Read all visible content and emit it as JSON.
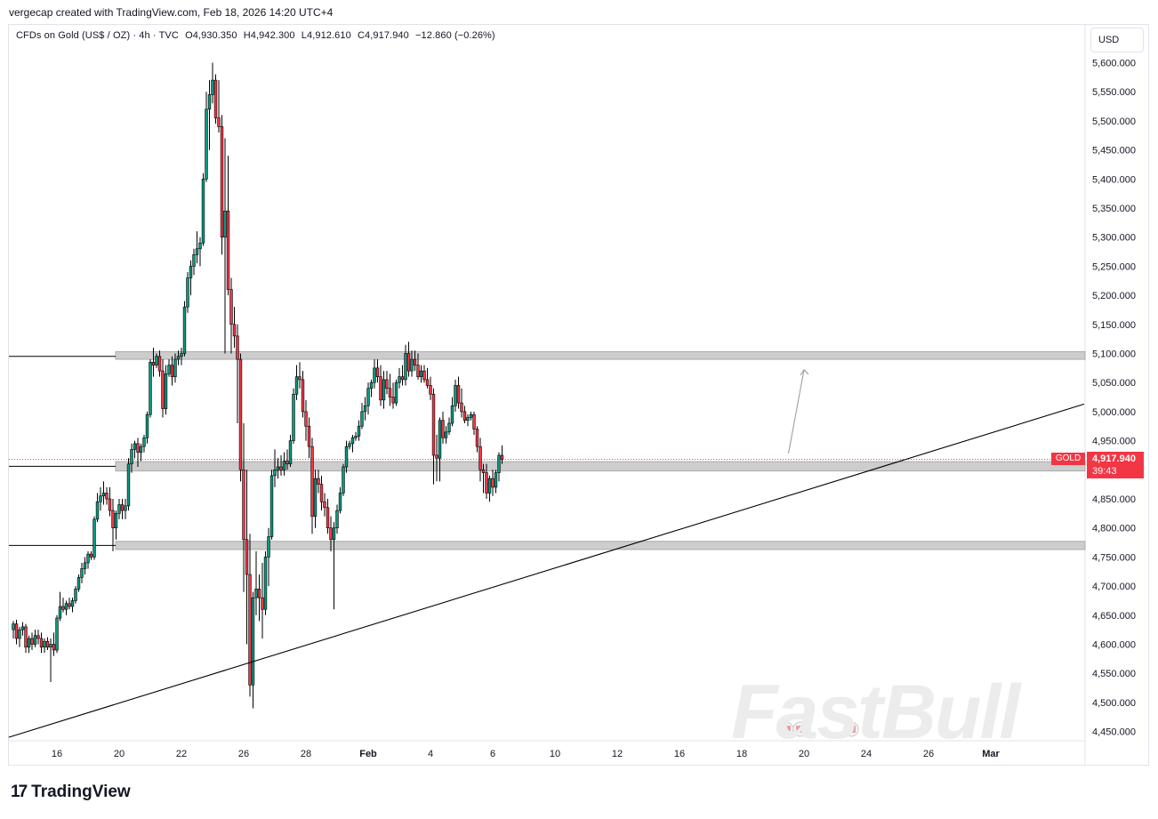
{
  "attribution": "vergecap created with TradingView.com, Feb 18, 2026 14:20 UTC+4",
  "legend": {
    "symbol": "CFDs on Gold (US$ / OZ) · 4h · TVC",
    "open": "O4,930.350",
    "high": "H4,942.300",
    "low": "L4,912.610",
    "close": "C4,917.940",
    "change": "−12.860 (−0.26%)"
  },
  "currency": "USD",
  "price_tag": {
    "symbol": "GOLD",
    "price": "4,917.940",
    "countdown": "39:43"
  },
  "footer_brand": "TradingView",
  "watermark": "FastBull",
  "colors": {
    "up": "#089981",
    "down": "#f23645",
    "zone": "#b8b8b8",
    "line": "#000000"
  },
  "chart_data": {
    "type": "candlestick",
    "ylim": [
      4435,
      5635
    ],
    "y_ticks": [
      "4,450.000",
      "4,500.000",
      "4,550.000",
      "4,600.000",
      "4,650.000",
      "4,700.000",
      "4,750.000",
      "4,800.000",
      "4,850.000",
      "4,900.000",
      "4,950.000",
      "5,000.000",
      "5,050.000",
      "5,100.000",
      "5,150.000",
      "5,200.000",
      "5,250.000",
      "5,300.000",
      "5,350.000",
      "5,400.000",
      "5,450.000",
      "5,500.000",
      "5,550.000",
      "5,600.000"
    ],
    "x_ticks": [
      {
        "label": "16",
        "slot": 14
      },
      {
        "label": "20",
        "slot": 34
      },
      {
        "label": "22",
        "slot": 54
      },
      {
        "label": "26",
        "slot": 74
      },
      {
        "label": "28",
        "slot": 94
      },
      {
        "label": "Feb",
        "slot": 114
      },
      {
        "label": "4",
        "slot": 134
      },
      {
        "label": "6",
        "slot": 154
      },
      {
        "label": "10",
        "slot": 174
      },
      {
        "label": "12",
        "slot": 194
      },
      {
        "label": "16",
        "slot": 214
      },
      {
        "label": "18",
        "slot": 234
      },
      {
        "label": "20",
        "slot": 254
      },
      {
        "label": "24",
        "slot": 274
      },
      {
        "label": "26",
        "slot": 294
      },
      {
        "label": "Mar",
        "slot": 314
      }
    ],
    "zones": [
      {
        "low": 5090,
        "high": 5103
      },
      {
        "low": 4898,
        "high": 4914
      },
      {
        "low": 4763,
        "high": 4777
      }
    ],
    "level_lines": [
      5095,
      4906,
      4770
    ],
    "trendline": {
      "start": {
        "slot": -1.5,
        "price": 4440
      },
      "end": {
        "slot": 344,
        "price": 5013
      }
    },
    "projection": [
      {
        "slot": 249,
        "price": 4928
      },
      {
        "slot": 254,
        "price": 5072
      }
    ],
    "last_price": 4917.94,
    "candles": [
      [
        4625,
        4640,
        4610,
        4635
      ],
      [
        4635,
        4642,
        4600,
        4610
      ],
      [
        4610,
        4630,
        4595,
        4625
      ],
      [
        4625,
        4638,
        4615,
        4630
      ],
      [
        4630,
        4635,
        4585,
        4595
      ],
      [
        4595,
        4615,
        4585,
        4610
      ],
      [
        4610,
        4620,
        4590,
        4600
      ],
      [
        4600,
        4625,
        4595,
        4615
      ],
      [
        4615,
        4625,
        4600,
        4610
      ],
      [
        4610,
        4620,
        4585,
        4595
      ],
      [
        4595,
        4610,
        4585,
        4605
      ],
      [
        4605,
        4612,
        4590,
        4595
      ],
      [
        4595,
        4610,
        4535,
        4600
      ],
      [
        4600,
        4620,
        4580,
        4590
      ],
      [
        4590,
        4650,
        4585,
        4645
      ],
      [
        4645,
        4690,
        4640,
        4665
      ],
      [
        4665,
        4680,
        4655,
        4660
      ],
      [
        4660,
        4675,
        4650,
        4670
      ],
      [
        4670,
        4680,
        4660,
        4665
      ],
      [
        4665,
        4680,
        4655,
        4675
      ],
      [
        4675,
        4700,
        4670,
        4695
      ],
      [
        4695,
        4720,
        4690,
        4715
      ],
      [
        4715,
        4740,
        4705,
        4730
      ],
      [
        4730,
        4750,
        4720,
        4740
      ],
      [
        4740,
        4760,
        4730,
        4755
      ],
      [
        4755,
        4760,
        4745,
        4750
      ],
      [
        4750,
        4820,
        4745,
        4815
      ],
      [
        4815,
        4860,
        4810,
        4845
      ],
      [
        4845,
        4870,
        4830,
        4855
      ],
      [
        4855,
        4880,
        4840,
        4860
      ],
      [
        4860,
        4870,
        4840,
        4850
      ],
      [
        4850,
        4870,
        4820,
        4830
      ],
      [
        4830,
        4850,
        4760,
        4800
      ],
      [
        4800,
        4830,
        4780,
        4825
      ],
      [
        4825,
        4850,
        4815,
        4840
      ],
      [
        4840,
        4850,
        4815,
        4830
      ],
      [
        4830,
        4850,
        4815,
        4838
      ],
      [
        4838,
        4920,
        4830,
        4910
      ],
      [
        4910,
        4945,
        4895,
        4935
      ],
      [
        4935,
        4950,
        4920,
        4945
      ],
      [
        4945,
        4955,
        4905,
        4930
      ],
      [
        4930,
        4945,
        4915,
        4940
      ],
      [
        4940,
        4960,
        4930,
        4955
      ],
      [
        4955,
        5000,
        4945,
        4995
      ],
      [
        4995,
        5090,
        4990,
        5085
      ],
      [
        5085,
        5110,
        5060,
        5080
      ],
      [
        5080,
        5100,
        5075,
        5095
      ],
      [
        5095,
        5105,
        5060,
        5070
      ],
      [
        5070,
        5090,
        4990,
        5005
      ],
      [
        5005,
        5080,
        4995,
        5065
      ],
      [
        5065,
        5090,
        5060,
        5080
      ],
      [
        5080,
        5095,
        5045,
        5060
      ],
      [
        5060,
        5100,
        5050,
        5090
      ],
      [
        5090,
        5105,
        5080,
        5095
      ],
      [
        5095,
        5110,
        5080,
        5100
      ],
      [
        5100,
        5190,
        5095,
        5180
      ],
      [
        5180,
        5240,
        5170,
        5230
      ],
      [
        5230,
        5260,
        5200,
        5250
      ],
      [
        5250,
        5280,
        5235,
        5270
      ],
      [
        5270,
        5310,
        5255,
        5280
      ],
      [
        5280,
        5300,
        5250,
        5290
      ],
      [
        5290,
        5410,
        5285,
        5400
      ],
      [
        5400,
        5550,
        5395,
        5520
      ],
      [
        5520,
        5570,
        5450,
        5545
      ],
      [
        5545,
        5600,
        5530,
        5570
      ],
      [
        5570,
        5580,
        5495,
        5505
      ],
      [
        5505,
        5570,
        5480,
        5490
      ],
      [
        5490,
        5510,
        5270,
        5300
      ],
      [
        5300,
        5470,
        5100,
        5345
      ],
      [
        5345,
        5440,
        5200,
        5210
      ],
      [
        5210,
        5230,
        5100,
        5150
      ],
      [
        5150,
        5180,
        5110,
        5130
      ],
      [
        5130,
        5150,
        4980,
        5090
      ],
      [
        5090,
        5100,
        4880,
        4900
      ],
      [
        4900,
        4980,
        4690,
        4780
      ],
      [
        4780,
        4900,
        4600,
        4720
      ],
      [
        4720,
        4790,
        4510,
        4530
      ],
      [
        4530,
        4690,
        4490,
        4680
      ],
      [
        4680,
        4760,
        4650,
        4695
      ],
      [
        4695,
        4720,
        4640,
        4680
      ],
      [
        4680,
        4740,
        4610,
        4660
      ],
      [
        4660,
        4760,
        4650,
        4750
      ],
      [
        4750,
        4800,
        4700,
        4785
      ],
      [
        4785,
        4900,
        4780,
        4890
      ],
      [
        4890,
        4935,
        4870,
        4900
      ],
      [
        4900,
        4920,
        4885,
        4905
      ],
      [
        4905,
        4925,
        4890,
        4900
      ],
      [
        4900,
        4930,
        4890,
        4915
      ],
      [
        4915,
        4935,
        4900,
        4910
      ],
      [
        4910,
        4960,
        4905,
        4950
      ],
      [
        4950,
        5040,
        4945,
        5030
      ],
      [
        5030,
        5080,
        5020,
        5060
      ],
      [
        5060,
        5085,
        5040,
        5055
      ],
      [
        5055,
        5070,
        4990,
        5000
      ],
      [
        5000,
        5020,
        4950,
        4975
      ],
      [
        4975,
        4990,
        4920,
        4940
      ],
      [
        4940,
        4955,
        4790,
        4820
      ],
      [
        4820,
        4900,
        4800,
        4885
      ],
      [
        4885,
        4900,
        4860,
        4875
      ],
      [
        4875,
        4890,
        4830,
        4845
      ],
      [
        4845,
        4860,
        4820,
        4835
      ],
      [
        4835,
        4850,
        4790,
        4800
      ],
      [
        4800,
        4820,
        4760,
        4780
      ],
      [
        4780,
        4810,
        4660,
        4800
      ],
      [
        4800,
        4840,
        4790,
        4830
      ],
      [
        4830,
        4870,
        4825,
        4860
      ],
      [
        4860,
        4910,
        4855,
        4905
      ],
      [
        4905,
        4950,
        4895,
        4940
      ],
      [
        4940,
        4950,
        4935,
        4945
      ],
      [
        4945,
        4960,
        4930,
        4955
      ],
      [
        4955,
        4965,
        4950,
        4958
      ],
      [
        4958,
        4985,
        4950,
        4975
      ],
      [
        4975,
        5015,
        4970,
        5000
      ],
      [
        5000,
        5025,
        4985,
        5010
      ],
      [
        5010,
        5050,
        4995,
        5040
      ],
      [
        5040,
        5055,
        5025,
        5050
      ],
      [
        5050,
        5090,
        5040,
        5075
      ],
      [
        5075,
        5090,
        5050,
        5060
      ],
      [
        5060,
        5080,
        5010,
        5020
      ],
      [
        5020,
        5070,
        5005,
        5055
      ],
      [
        5055,
        5070,
        5030,
        5040
      ],
      [
        5040,
        5065,
        5010,
        5025
      ],
      [
        5025,
        5050,
        5005,
        5015
      ],
      [
        5015,
        5055,
        5010,
        5050
      ],
      [
        5050,
        5075,
        5040,
        5060
      ],
      [
        5060,
        5080,
        5045,
        5055
      ],
      [
        5055,
        5115,
        5045,
        5100
      ],
      [
        5100,
        5120,
        5060,
        5070
      ],
      [
        5070,
        5105,
        5060,
        5090
      ],
      [
        5090,
        5105,
        5070,
        5080
      ],
      [
        5080,
        5100,
        5055,
        5060
      ],
      [
        5060,
        5080,
        5050,
        5070
      ],
      [
        5070,
        5080,
        5050,
        5055
      ],
      [
        5055,
        5075,
        5040,
        5045
      ],
      [
        5045,
        5060,
        5020,
        5030
      ],
      [
        5030,
        5040,
        4875,
        4925
      ],
      [
        4925,
        4960,
        4880,
        4920
      ],
      [
        4920,
        4990,
        4880,
        4985
      ],
      [
        4985,
        5000,
        4945,
        4955
      ],
      [
        4955,
        4975,
        4945,
        4965
      ],
      [
        4965,
        4990,
        4960,
        4980
      ],
      [
        4980,
        5025,
        4975,
        5010
      ],
      [
        5010,
        5055,
        5000,
        5045
      ],
      [
        5045,
        5060,
        5005,
        5015
      ],
      [
        5015,
        5040,
        4990,
        5000
      ],
      [
        5000,
        5010,
        4980,
        4985
      ],
      [
        4985,
        4995,
        4975,
        4990
      ],
      [
        4990,
        5000,
        4985,
        4995
      ],
      [
        4995,
        5000,
        4960,
        4970
      ],
      [
        4970,
        4975,
        4930,
        4940
      ],
      [
        4940,
        4955,
        4880,
        4900
      ],
      [
        4900,
        4910,
        4860,
        4895
      ],
      [
        4895,
        4910,
        4850,
        4860
      ],
      [
        4860,
        4890,
        4845,
        4885
      ],
      [
        4885,
        4900,
        4855,
        4870
      ],
      [
        4870,
        4900,
        4860,
        4895
      ],
      [
        4895,
        4930,
        4880,
        4925
      ],
      [
        4925,
        4942,
        4910,
        4918
      ]
    ]
  }
}
